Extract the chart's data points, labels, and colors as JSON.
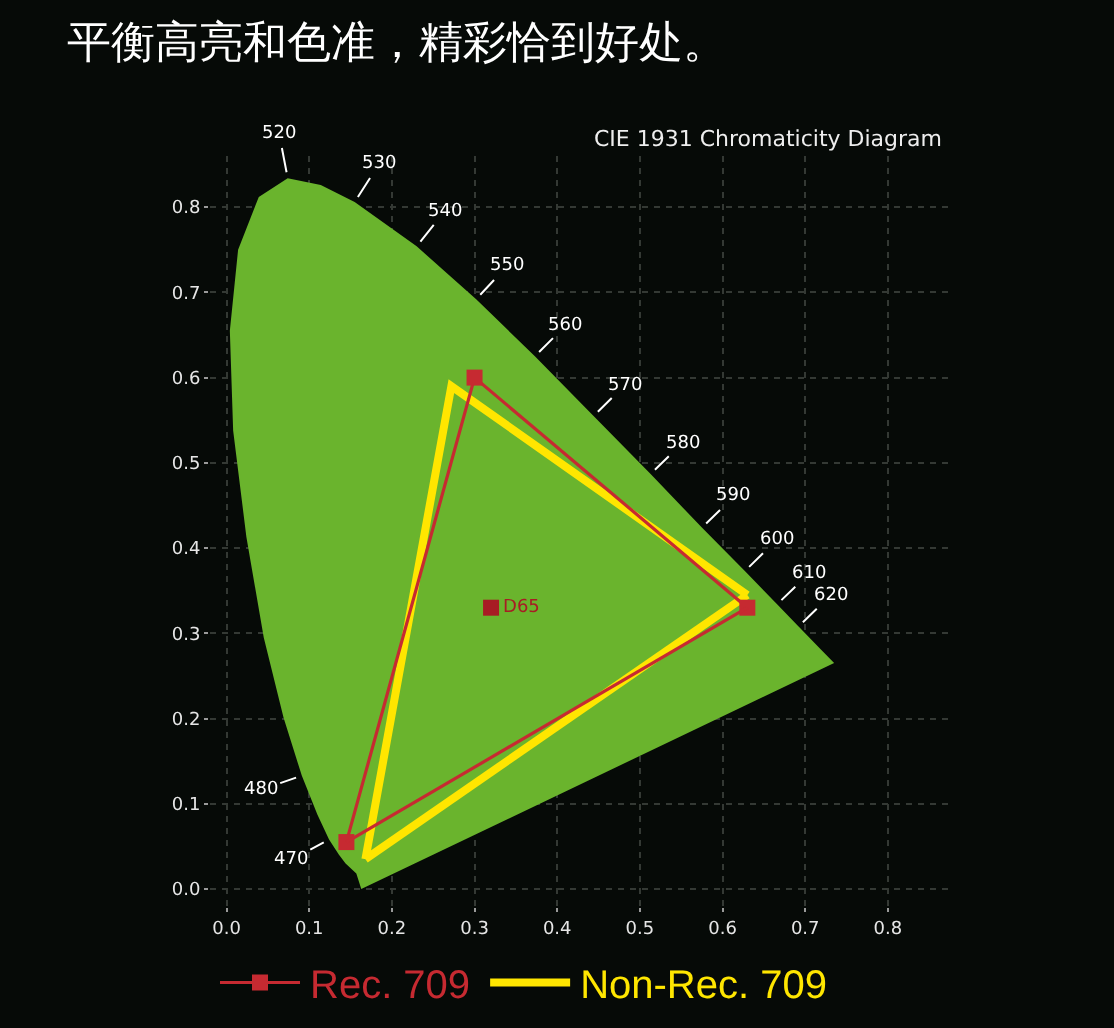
{
  "chart_data": {
    "type": "line",
    "title": "平衡高亮和色准，精彩恰到好处。",
    "subtitle": "CIE 1931 Chromaticity Diagram",
    "xlim": [
      -0.02,
      0.88
    ],
    "ylim": [
      -0.02,
      0.86
    ],
    "xticks": [
      {
        "value": 0,
        "label": "0.0"
      },
      0.1,
      0.2,
      0.3,
      0.4,
      0.5,
      0.6,
      0.7,
      0.8
    ],
    "yticks": [
      {
        "value": 0,
        "label": "0.0"
      },
      0.1,
      0.2,
      0.3,
      0.4,
      0.5,
      0.6,
      0.7,
      0.8
    ],
    "grid": true,
    "legend": "bottom",
    "line_style": "solid",
    "series": [
      {
        "type": "area",
        "color": "#6ab42d",
        "x": [
          0.163,
          0.157,
          0.144,
          0.136,
          0.124,
          0.11,
          0.091,
          0.069,
          0.045,
          0.024,
          0.008,
          0.004,
          0.014,
          0.039,
          0.074,
          0.114,
          0.155,
          0.23,
          0.302,
          0.373,
          0.444,
          0.513,
          0.575,
          0.627,
          0.666,
          0.692,
          0.719,
          0.735
        ],
        "values": [
          0.0,
          0.018,
          0.03,
          0.04,
          0.058,
          0.087,
          0.133,
          0.201,
          0.295,
          0.413,
          0.538,
          0.655,
          0.75,
          0.812,
          0.834,
          0.826,
          0.806,
          0.754,
          0.692,
          0.625,
          0.555,
          0.487,
          0.424,
          0.373,
          0.334,
          0.308,
          0.281,
          0.265
        ]
      },
      {
        "name": "Rec. 709",
        "color": "#c62a31",
        "marker": "square",
        "x": [
          0.145,
          0.3,
          0.63
        ],
        "values": [
          0.055,
          0.6,
          0.33
        ]
      },
      {
        "color": "#c62a31",
        "marker": "none",
        "x": [
          0.145,
          0.63
        ],
        "values": [
          0.055,
          0.33
        ]
      },
      {
        "name": "Non-Rec. 709",
        "color": "#ffe600",
        "marker": "none",
        "x": [
          0.168,
          0.272,
          0.63
        ],
        "values": [
          0.035,
          0.59,
          0.345
        ]
      },
      {
        "color": "#ffe600",
        "marker": "none",
        "x": [
          0.168,
          0.63
        ],
        "values": [
          0.035,
          0.345
        ]
      },
      {
        "type": "scatter",
        "name": "D65",
        "color": "#a81c24",
        "marker": "square",
        "x": [
          0.32
        ],
        "values": [
          0.33
        ]
      }
    ],
    "annotations": [
      {
        "text": "470",
        "x": 0.124,
        "y": 0.058
      },
      {
        "text": "480",
        "x": 0.091,
        "y": 0.133
      },
      {
        "text": "520",
        "x": 0.074,
        "y": 0.834
      },
      {
        "text": "530",
        "x": 0.155,
        "y": 0.806
      },
      {
        "text": "540",
        "x": 0.23,
        "y": 0.754
      },
      {
        "text": "550",
        "x": 0.302,
        "y": 0.692
      },
      {
        "text": "560",
        "x": 0.373,
        "y": 0.625
      },
      {
        "text": "570",
        "x": 0.444,
        "y": 0.555
      },
      {
        "text": "580",
        "x": 0.513,
        "y": 0.487
      },
      {
        "text": "590",
        "x": 0.575,
        "y": 0.424
      },
      {
        "text": "600",
        "x": 0.627,
        "y": 0.373
      },
      {
        "text": "610",
        "x": 0.666,
        "y": 0.334
      },
      {
        "text": "620",
        "x": 0.692,
        "y": 0.308
      }
    ]
  }
}
